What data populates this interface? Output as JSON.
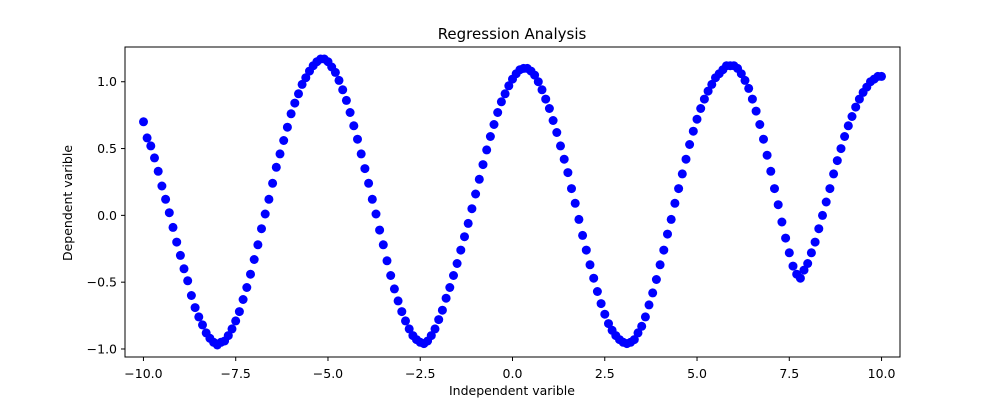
{
  "chart_data": {
    "type": "scatter",
    "title": "Regression Analysis",
    "xlabel": "Independent varible",
    "ylabel": "Dependent varible",
    "xlim": [
      -10.5,
      10.5
    ],
    "ylim": [
      -1.06,
      1.26
    ],
    "xticks": [
      -10.0,
      -7.5,
      -5.0,
      -2.5,
      0.0,
      2.5,
      5.0,
      7.5,
      10.0
    ],
    "xtick_labels": [
      "−10.0",
      "−7.5",
      "−5.0",
      "−2.5",
      "0.0",
      "2.5",
      "5.0",
      "7.5",
      "10.0"
    ],
    "yticks": [
      -1.0,
      -0.5,
      0.0,
      0.5,
      1.0
    ],
    "ytick_labels": [
      "−1.0",
      "−0.5",
      "0.0",
      "0.5",
      "1.0"
    ],
    "grid": false,
    "legend": "none",
    "marker_color": "#0000ff",
    "series": [
      {
        "x": [
          -10.0,
          -9.9,
          -9.8,
          -9.7,
          -9.6,
          -9.5,
          -9.4,
          -9.3,
          -9.2,
          -9.1,
          -9.0,
          -8.9,
          -8.8,
          -8.7,
          -8.6,
          -8.5,
          -8.4,
          -8.3,
          -8.2,
          -8.1,
          -8.0,
          -7.9,
          -7.8,
          -7.7,
          -7.6,
          -7.5,
          -7.4,
          -7.3,
          -7.2,
          -7.1,
          -7.0,
          -6.9,
          -6.8,
          -6.7,
          -6.6,
          -6.5,
          -6.4,
          -6.3,
          -6.2,
          -6.1,
          -6.0,
          -5.9,
          -5.8,
          -5.7,
          -5.6,
          -5.5,
          -5.4,
          -5.3,
          -5.2,
          -5.1,
          -5.0,
          -4.9,
          -4.8,
          -4.7,
          -4.6,
          -4.5,
          -4.4,
          -4.3,
          -4.2,
          -4.1,
          -4.0,
          -3.9,
          -3.8,
          -3.7,
          -3.6,
          -3.5,
          -3.4,
          -3.3,
          -3.2,
          -3.1,
          -3.0,
          -2.9,
          -2.8,
          -2.7,
          -2.6,
          -2.5,
          -2.4,
          -2.3,
          -2.2,
          -2.1,
          -2.0,
          -1.9,
          -1.8,
          -1.7,
          -1.6,
          -1.5,
          -1.4,
          -1.3,
          -1.2,
          -1.1,
          -1.0,
          -0.9,
          -0.8,
          -0.7,
          -0.6,
          -0.5,
          -0.4,
          -0.3,
          -0.2,
          -0.1,
          0.0,
          0.1,
          0.2,
          0.3,
          0.4,
          0.5,
          0.6,
          0.7,
          0.8,
          0.9,
          1.0,
          1.1,
          1.2,
          1.3,
          1.4,
          1.5,
          1.6,
          1.7,
          1.8,
          1.9,
          2.0,
          2.1,
          2.2,
          2.3,
          2.4,
          2.5,
          2.6,
          2.7,
          2.8,
          2.9,
          3.0,
          3.1,
          3.2,
          3.3,
          3.4,
          3.5,
          3.6,
          3.7,
          3.8,
          3.9,
          4.0,
          4.1,
          4.2,
          4.3,
          4.4,
          4.5,
          4.6,
          4.7,
          4.8,
          4.9,
          5.0,
          5.1,
          5.2,
          5.3,
          5.4,
          5.5,
          5.6,
          5.7,
          5.8,
          5.9,
          6.0,
          6.1,
          6.2,
          6.3,
          6.4,
          6.5,
          6.6,
          6.7,
          6.8,
          6.9,
          7.0,
          7.1,
          7.2,
          7.3,
          7.4,
          7.5,
          7.6,
          7.7,
          7.8,
          7.9,
          8.0,
          8.1,
          8.2,
          8.3,
          8.4,
          8.5,
          8.6,
          8.7,
          8.8,
          8.9,
          9.0,
          9.1,
          9.2,
          9.3,
          9.4,
          9.5,
          9.6,
          9.7,
          9.8,
          9.9,
          10.0
        ],
        "y": [
          0.7,
          0.58,
          0.52,
          0.43,
          0.33,
          0.22,
          0.12,
          0.02,
          -0.09,
          -0.2,
          -0.3,
          -0.4,
          -0.49,
          -0.6,
          -0.69,
          -0.76,
          -0.82,
          -0.88,
          -0.92,
          -0.95,
          -0.97,
          -0.95,
          -0.94,
          -0.9,
          -0.85,
          -0.79,
          -0.72,
          -0.63,
          -0.54,
          -0.44,
          -0.33,
          -0.22,
          -0.1,
          0.01,
          0.12,
          0.24,
          0.36,
          0.46,
          0.56,
          0.66,
          0.76,
          0.84,
          0.91,
          0.98,
          1.03,
          1.08,
          1.12,
          1.15,
          1.17,
          1.17,
          1.15,
          1.11,
          1.07,
          1.01,
          0.94,
          0.86,
          0.77,
          0.67,
          0.57,
          0.46,
          0.35,
          0.24,
          0.12,
          0.01,
          -0.11,
          -0.22,
          -0.34,
          -0.45,
          -0.55,
          -0.64,
          -0.72,
          -0.79,
          -0.85,
          -0.9,
          -0.93,
          -0.95,
          -0.96,
          -0.94,
          -0.9,
          -0.85,
          -0.78,
          -0.71,
          -0.62,
          -0.54,
          -0.45,
          -0.36,
          -0.26,
          -0.16,
          -0.06,
          0.05,
          0.16,
          0.27,
          0.38,
          0.49,
          0.59,
          0.68,
          0.77,
          0.85,
          0.91,
          0.97,
          1.02,
          1.06,
          1.09,
          1.1,
          1.1,
          1.08,
          1.05,
          1.0,
          0.94,
          0.87,
          0.8,
          0.71,
          0.62,
          0.52,
          0.42,
          0.32,
          0.2,
          0.09,
          -0.03,
          -0.15,
          -0.26,
          -0.37,
          -0.47,
          -0.57,
          -0.66,
          -0.74,
          -0.81,
          -0.86,
          -0.9,
          -0.93,
          -0.95,
          -0.96,
          -0.95,
          -0.93,
          -0.88,
          -0.83,
          -0.76,
          -0.67,
          -0.58,
          -0.48,
          -0.37,
          -0.26,
          -0.14,
          -0.03,
          0.09,
          0.2,
          0.31,
          0.42,
          0.53,
          0.63,
          0.72,
          0.8,
          0.87,
          0.93,
          0.98,
          1.03,
          1.06,
          1.09,
          1.12,
          1.12,
          1.12,
          1.1,
          1.06,
          1.01,
          0.95,
          0.87,
          0.78,
          0.68,
          0.57,
          0.45,
          0.33,
          0.2,
          0.08,
          -0.05,
          -0.17,
          -0.28,
          -0.38,
          -0.44,
          -0.47,
          -0.41,
          -0.36,
          -0.28,
          -0.2,
          -0.1,
          0.0,
          0.1,
          0.2,
          0.31,
          0.41,
          0.5,
          0.59,
          0.67,
          0.74,
          0.81,
          0.87,
          0.92,
          0.96,
          1.0,
          1.02,
          1.04,
          1.04
        ]
      }
    ]
  }
}
